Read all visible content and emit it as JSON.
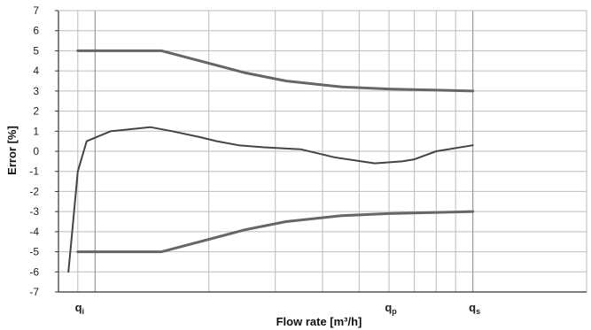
{
  "chart_data": {
    "type": "line",
    "title": "",
    "xlabel": "Flow rate [m³/h]",
    "ylabel": "Error [%]",
    "xscale": "log",
    "xlim": [
      0.8,
      20
    ],
    "ylim": [
      -7,
      7
    ],
    "yticks": [
      7,
      6,
      5,
      4,
      3,
      2,
      1,
      0,
      -1,
      -2,
      -3,
      -4,
      -5,
      -6,
      -7
    ],
    "grid": true,
    "legend": "none",
    "x_tick_labels": [
      {
        "main": "q",
        "sub": "i",
        "x": 0.9
      },
      {
        "main": "q",
        "sub": "p",
        "x": 6
      },
      {
        "main": "q",
        "sub": "s",
        "x": 10
      }
    ],
    "series": [
      {
        "role": "upper-limit",
        "x": [
          0.9,
          1.5,
          2.5,
          3.2,
          4.5,
          6,
          10
        ],
        "y": [
          5,
          5,
          3.9,
          3.5,
          3.2,
          3.1,
          3.0
        ]
      },
      {
        "role": "measured",
        "x": [
          0.85,
          0.87,
          0.9,
          0.95,
          1.1,
          1.4,
          1.6,
          1.9,
          2.1,
          2.4,
          2.8,
          3.5,
          4.3,
          5.5,
          6.5,
          7,
          8,
          10
        ],
        "y": [
          -6,
          -4,
          -1,
          0.5,
          1.0,
          1.2,
          1.0,
          0.7,
          0.5,
          0.3,
          0.2,
          0.1,
          -0.3,
          -0.6,
          -0.5,
          -0.4,
          0.0,
          0.3
        ]
      },
      {
        "role": "lower-limit",
        "x": [
          0.9,
          1.5,
          2.5,
          3.2,
          4.5,
          6,
          10
        ],
        "y": [
          -5,
          -5,
          -3.9,
          -3.5,
          -3.2,
          -3.1,
          -3.0
        ]
      }
    ],
    "colors": {
      "limit": "#666666",
      "measured": "#444444",
      "grid": "#bdbdbd",
      "axis": "#333333"
    }
  }
}
